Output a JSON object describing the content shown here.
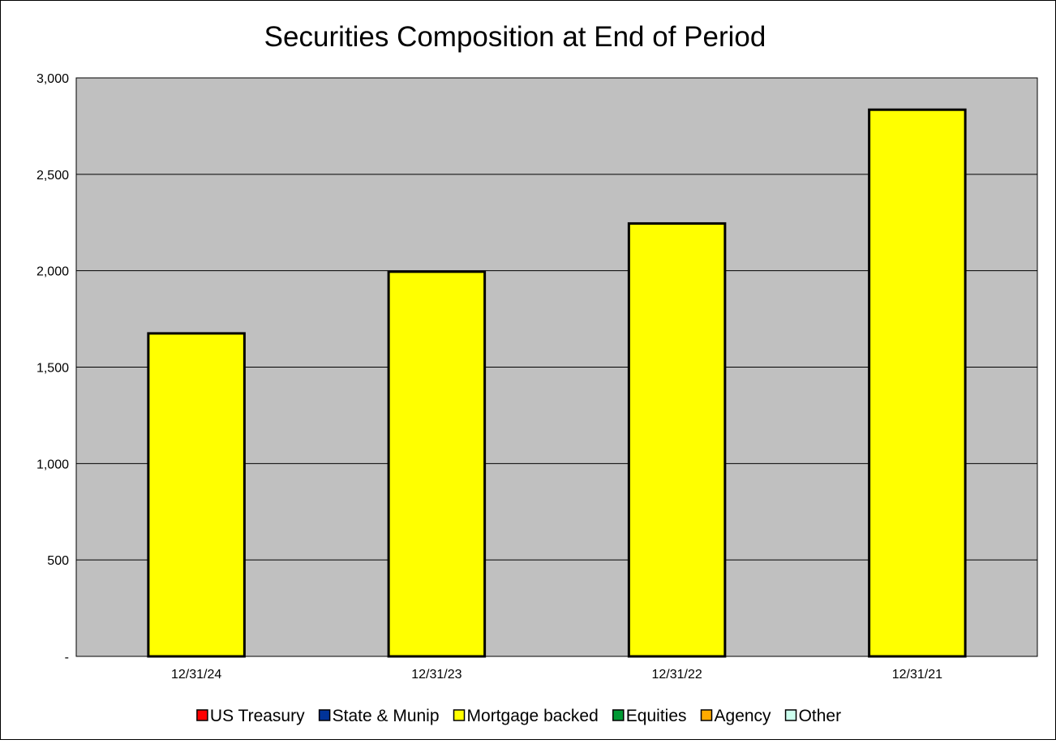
{
  "chart_data": {
    "type": "bar",
    "title": "Securities Composition at End of Period",
    "categories": [
      "12/31/24",
      "12/31/23",
      "12/31/22",
      "12/31/21"
    ],
    "series": [
      {
        "name": "US Treasury",
        "color": "#ff0000",
        "values": [
          0,
          0,
          0,
          0
        ]
      },
      {
        "name": "State & Munip",
        "color": "#003399",
        "values": [
          0,
          0,
          0,
          0
        ]
      },
      {
        "name": "Mortgage backed",
        "color": "#ffff00",
        "values": [
          1675,
          1995,
          2245,
          2835
        ]
      },
      {
        "name": "Equities",
        "color": "#009933",
        "values": [
          0,
          0,
          0,
          0
        ]
      },
      {
        "name": "Agency",
        "color": "#ffaa00",
        "values": [
          0,
          0,
          0,
          0
        ]
      },
      {
        "name": "Other",
        "color": "#ccffee",
        "values": [
          0,
          0,
          0,
          0
        ]
      }
    ],
    "yticks": [
      0,
      500,
      1000,
      1500,
      2000,
      2500,
      3000
    ],
    "ytick_labels": [
      "-",
      "500",
      "1,000",
      "1,500",
      "2,000",
      "2,500",
      "3,000"
    ],
    "ylim": [
      0,
      3000
    ],
    "xlabel": "",
    "ylabel": "",
    "grid": true,
    "legend_position": "bottom",
    "plot_background": "#c0c0c0"
  }
}
